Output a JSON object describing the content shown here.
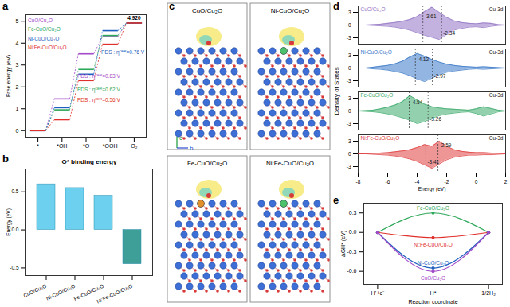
{
  "chart_data": [
    {
      "type": "step",
      "panel": "a",
      "categories": [
        "*",
        "*OH",
        "*O",
        "*OOH",
        "O₂"
      ],
      "y_label": "Free energy (eV)",
      "ylim": [
        -0.3,
        5.3
      ],
      "yticks": [
        0,
        1,
        2,
        3,
        4,
        5
      ],
      "legend": "top-left",
      "series": [
        {
          "name": "CuO/Cu₂O",
          "color": "#a24bc8",
          "values": [
            0,
            1.45,
            3.51,
            4.3,
            4.92
          ]
        },
        {
          "name": "Fe-CuO/Cu₂O",
          "color": "#2ea85a",
          "values": [
            0,
            0.95,
            2.8,
            4.35,
            4.92
          ]
        },
        {
          "name": "Ni-CuO/Cu₂O",
          "color": "#1f5fbf",
          "values": [
            0,
            1.05,
            2.58,
            4.57,
            4.92
          ]
        },
        {
          "name": "Ni:Fe-CuO/Cu₂O",
          "color": "#e0302c",
          "values": [
            0,
            0.5,
            2.29,
            3.95,
            4.92
          ]
        }
      ],
      "annotations": [
        {
          "text": "PDS : ηᴼᴱᴿ=0.83 V",
          "series": "CuO/Cu₂O"
        },
        {
          "text": "PDS : ηᴼᴱᴿ=0.76 V",
          "series": "Ni-CuO/Cu₂O"
        },
        {
          "text": "PDS : ηᴼᴱᴿ=0.62 V",
          "series": "Fe-CuO/Cu₂O"
        },
        {
          "text": "PDS : ηᴼᴱᴿ=0.56 V",
          "series": "Ni:Fe-CuO/Cu₂O"
        }
      ],
      "end_value": {
        "value": 4.92,
        "label": "4.920"
      }
    },
    {
      "type": "bar",
      "panel": "b",
      "title": "O* binding energy",
      "categories": [
        "CuO/Cu₂O",
        "Ni-CuO/Cu₂O",
        "Fe-CuO/Cu₂O",
        "Ni:Fe-CuO/Cu₂O"
      ],
      "values": [
        0.6,
        0.55,
        0.45,
        -0.45
      ],
      "colors": [
        "#6cd0ee",
        "#6cd0ee",
        "#6cd0ee",
        "#3e9e98"
      ],
      "y_label": "Energy (eV)",
      "ylim": [
        -0.6,
        0.8
      ],
      "yticks": [
        -0.5,
        {
          "value": 0,
          "label": "0.0"
        },
        0.5
      ]
    },
    {
      "type": "area",
      "panel": "d",
      "x": [
        -8,
        -7.5,
        -7,
        -6.5,
        -6,
        -5.5,
        -5,
        -4.5,
        -4,
        -3.5,
        -3,
        -2.5,
        -2,
        -1.5,
        -1,
        -0.5,
        0,
        0.5,
        1,
        1.5,
        2
      ],
      "x_label": "Energy (eV)",
      "y_label": "Density of States",
      "xlim": [
        -8,
        2
      ],
      "xticks": [
        -8,
        -6,
        -4,
        -2,
        0,
        2
      ],
      "ylim": [
        -4.5,
        4.5
      ],
      "yticks": [
        -3,
        0,
        3
      ],
      "series": [
        {
          "name": "CuO/Cu₂O",
          "label": "Cu-3d",
          "color": "#9273c4",
          "up": [
            0,
            0,
            0.1,
            0.2,
            0.4,
            0.6,
            0.9,
            1.3,
            2,
            3.2,
            4.2,
            3,
            1.8,
            1,
            0.6,
            0.4,
            0.3,
            0.5,
            0.4,
            0.1,
            0
          ],
          "down": [
            0,
            0,
            -0.1,
            -0.2,
            -0.3,
            -0.5,
            -0.8,
            -1.2,
            -1.8,
            -2.4,
            -2.9,
            -3.4,
            -2.2,
            -1.2,
            -0.8,
            -0.5,
            -0.4,
            -0.6,
            -0.3,
            -0.1,
            0
          ],
          "d_band_centers": [
            -3.61,
            -2.34
          ]
        },
        {
          "name": "Ni-CuO/Cu₂O",
          "label": "Cu-3d",
          "color": "#3a78c8",
          "up": [
            0,
            0,
            0.2,
            0.4,
            0.6,
            1,
            1.6,
            2.6,
            3.4,
            2.8,
            2,
            1.4,
            0.9,
            0.6,
            0.4,
            0.3,
            0.2,
            0.3,
            0.2,
            0.1,
            0
          ],
          "down": [
            0,
            0,
            -0.2,
            -0.3,
            -0.5,
            -0.8,
            -1.2,
            -1.8,
            -2.6,
            -3.2,
            -2.4,
            -1.6,
            -1,
            -0.7,
            -0.5,
            -0.3,
            -0.2,
            -0.3,
            -0.2,
            -0.1,
            0
          ],
          "d_band_centers": [
            -4.12,
            -2.97
          ]
        },
        {
          "name": "Fe-CuO/Cu₂O",
          "label": "Cu-3d",
          "color": "#3aaa6a",
          "up": [
            0,
            0.1,
            0.2,
            0.5,
            0.9,
            1.4,
            2.2,
            3.6,
            2.6,
            1.6,
            1,
            0.7,
            0.5,
            0.4,
            0.3,
            0.2,
            0.5,
            1,
            0.6,
            0.2,
            0
          ],
          "down": [
            0,
            -0.1,
            -0.2,
            -0.4,
            -0.7,
            -1.1,
            -1.6,
            -2.2,
            -3,
            -2.5,
            -1.7,
            -1.1,
            -0.7,
            -0.5,
            -0.3,
            -0.2,
            -0.6,
            -1.2,
            -0.7,
            -0.2,
            0
          ],
          "d_band_centers": [
            -4.54,
            -3.26
          ]
        },
        {
          "name": "Ni:Fe-CuO/Cu₂O",
          "label": "Cu-3d",
          "color": "#e04040",
          "up": [
            0,
            0,
            0.1,
            0.2,
            0.3,
            0.5,
            0.7,
            1,
            1.5,
            2.2,
            1.8,
            3,
            1.8,
            1,
            0.6,
            0.4,
            0.3,
            0.3,
            0.2,
            0.1,
            0
          ],
          "down": [
            0,
            0,
            -0.1,
            -0.2,
            -0.3,
            -0.5,
            -0.8,
            -1.2,
            -1.8,
            -2.6,
            -3.4,
            -2.4,
            -1.4,
            -0.8,
            -0.5,
            -0.3,
            -0.3,
            -0.2,
            -0.2,
            -0.1,
            0
          ],
          "d_band_centers": [
            -2.59,
            -3.41
          ]
        }
      ]
    },
    {
      "type": "line",
      "panel": "e",
      "categories": [
        "H⁺+e⁻",
        "H*",
        "1/2H₂"
      ],
      "x_label": "Reaction coordinate",
      "y_label": "ΔGH* (eV)",
      "ylim": [
        -0.8,
        0.45
      ],
      "yticks": [
        -0.6,
        -0.3,
        {
          "value": 0,
          "label": "0.0"
        },
        0.3
      ],
      "series": [
        {
          "name": "Fe-CuO/Cu₂O",
          "color": "#2ea85a",
          "values": [
            0,
            0.3,
            0
          ]
        },
        {
          "name": "Ni:Fe-CuO/Cu₂O",
          "color": "#e0302c",
          "values": [
            0,
            -0.08,
            0
          ]
        },
        {
          "name": "Ni-CuO/Cu₂O",
          "color": "#1f5fbf",
          "values": [
            0,
            -0.55,
            0
          ]
        },
        {
          "name": "CuO/Cu₂O",
          "color": "#a24bc8",
          "values": [
            0,
            -0.6,
            0
          ]
        }
      ]
    }
  ],
  "diagram": {
    "panel": "c",
    "structures": [
      "CuO/Cu₂O",
      "Ni-CuO/Cu₂O",
      "Fe-CuO/Cu₂O",
      "Ni:Fe-CuO/Cu₂O"
    ],
    "axes": [
      "c",
      "b"
    ]
  }
}
